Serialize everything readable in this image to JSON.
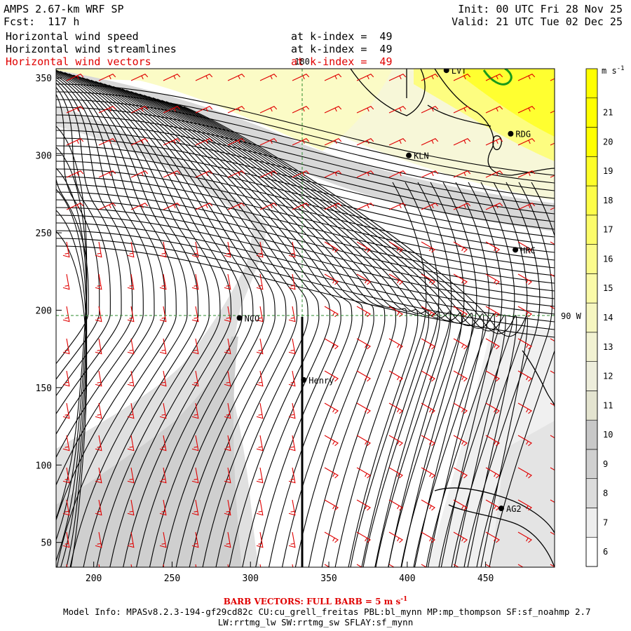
{
  "header": {
    "title_left": "AMPS 2.67-km WRF SP",
    "fcst": "Fcst:  117 h",
    "init": "Init: 00 UTC Fri 28 Nov 25",
    "valid": "Valid: 21 UTC Tue 02 Dec 25",
    "fields": [
      {
        "name": "Horizontal wind speed",
        "level": "at k-index =  49",
        "color": "#000000"
      },
      {
        "name": "Horizontal wind streamlines",
        "level": "at k-index =  49",
        "color": "#000000"
      },
      {
        "name": "Horizontal wind vectors",
        "level": "at k-index =  49",
        "color": "#e00000"
      }
    ]
  },
  "map": {
    "x_ticks": [
      200,
      250,
      300,
      350,
      400,
      450
    ],
    "y_ticks": [
      50,
      100,
      150,
      200,
      250,
      300,
      350
    ],
    "lon_180_label": "180",
    "lon_90w_label": "90 W",
    "stations": [
      {
        "name": "KLN",
        "x": 401,
        "y": 300
      },
      {
        "name": "RDG",
        "x": 466,
        "y": 314
      },
      {
        "name": "HRC",
        "x": 469,
        "y": 239
      },
      {
        "name": "NCO",
        "x": 293,
        "y": 195
      },
      {
        "name": "Henry",
        "x": 334,
        "y": 155
      },
      {
        "name": "AG2",
        "x": 460,
        "y": 72
      },
      {
        "name": "LVT",
        "x": 425,
        "y": 355
      }
    ],
    "colors": {
      "barb": "#e00000",
      "gridline": "#2e8b2e",
      "coast": "#000000",
      "green_contour": "#1a9a1a"
    }
  },
  "colorbar": {
    "unit": "m s",
    "unit_exp": "-1",
    "labels": [
      "6",
      "7",
      "8",
      "9",
      "10",
      "11",
      "12",
      "13",
      "14",
      "15",
      "16",
      "17",
      "18",
      "19",
      "20",
      "21"
    ],
    "colors": [
      "#ffffff",
      "#eeeeee",
      "#dcdcdc",
      "#d0d0d0",
      "#c8c8c8",
      "#e4e4d0",
      "#eeeedc",
      "#f2f2d2",
      "#f6f6c0",
      "#fafaa8",
      "#fbfb8c",
      "#fcfc6a",
      "#fdfd48",
      "#fefe28",
      "#ffff00",
      "#ffff00"
    ]
  },
  "footer": {
    "barb_note": "BARB VECTORS:  FULL BARB = 5 m s",
    "barb_note_exp": "-1",
    "model_info": "Model Info: MPASv8.2.3-194-gf29cd82c CU:cu_grell_freitas PBL:bl_mynn MP:mp_thompson SF:sf_noahmp 2.7",
    "model_info2": "LW:rrtmg_lw SW:rrtmg_sw SFLAY:sf_mynn"
  }
}
